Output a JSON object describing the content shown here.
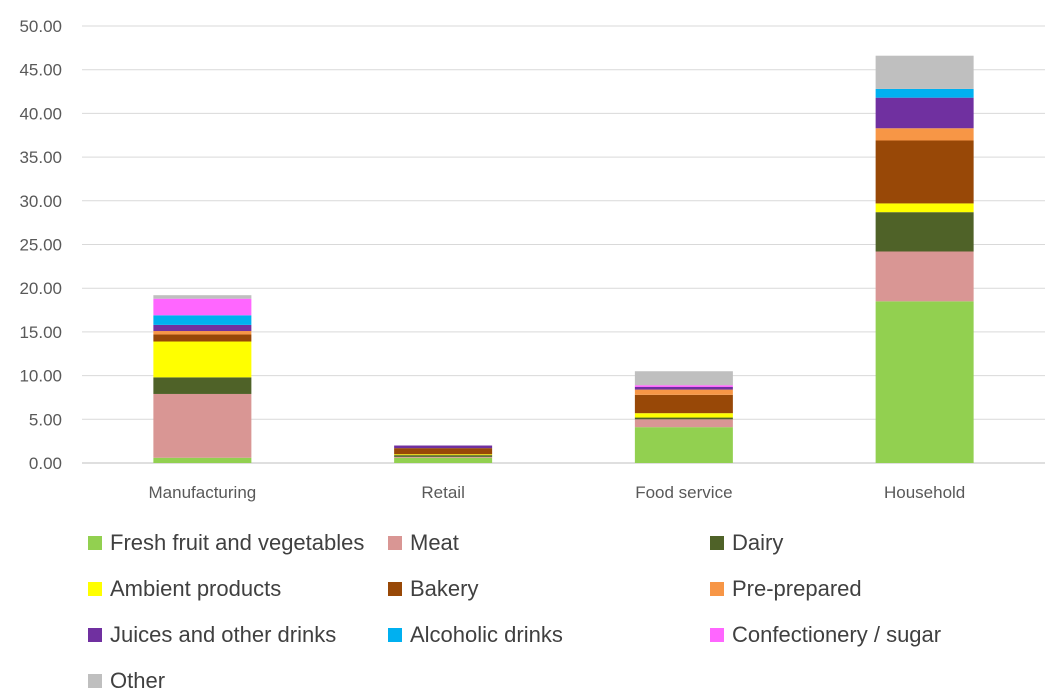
{
  "chart_data": {
    "type": "bar",
    "stacked": true,
    "categories": [
      "Manufacturing",
      "Retail",
      "Food service",
      "Household"
    ],
    "ylim": [
      0,
      50
    ],
    "yticks": [
      "0.00",
      "5.00",
      "10.00",
      "15.00",
      "20.00",
      "25.00",
      "30.00",
      "35.00",
      "40.00",
      "45.00",
      "50.00"
    ],
    "grid": true,
    "legend_position": "bottom",
    "series": [
      {
        "name": "Fresh fruit and vegetables",
        "color": "#92d050",
        "values": [
          0.6,
          0.6,
          4.1,
          18.5
        ]
      },
      {
        "name": "Meat",
        "color": "#d99694",
        "values": [
          7.3,
          0.1,
          0.9,
          5.7
        ]
      },
      {
        "name": "Dairy",
        "color": "#4f6228",
        "values": [
          1.9,
          0.2,
          0.2,
          4.5
        ]
      },
      {
        "name": "Ambient products",
        "color": "#ffff00",
        "values": [
          4.1,
          0.1,
          0.5,
          1.0
        ]
      },
      {
        "name": "Bakery",
        "color": "#984807",
        "values": [
          0.8,
          0.7,
          2.1,
          7.2
        ]
      },
      {
        "name": "Pre-prepared",
        "color": "#f79646",
        "values": [
          0.4,
          0.0,
          0.6,
          1.4
        ]
      },
      {
        "name": "Juices and other drinks",
        "color": "#7030a0",
        "values": [
          0.7,
          0.3,
          0.3,
          3.5
        ]
      },
      {
        "name": "Alcoholic drinks",
        "color": "#00b0f0",
        "values": [
          1.1,
          0.0,
          0.0,
          1.0
        ]
      },
      {
        "name": "Confectionery / sugar",
        "color": "#ff66ff",
        "values": [
          1.9,
          0.0,
          0.2,
          0.0
        ]
      },
      {
        "name": "Other",
        "color": "#bfbfbf",
        "values": [
          0.4,
          0.0,
          1.6,
          3.8
        ]
      }
    ]
  }
}
